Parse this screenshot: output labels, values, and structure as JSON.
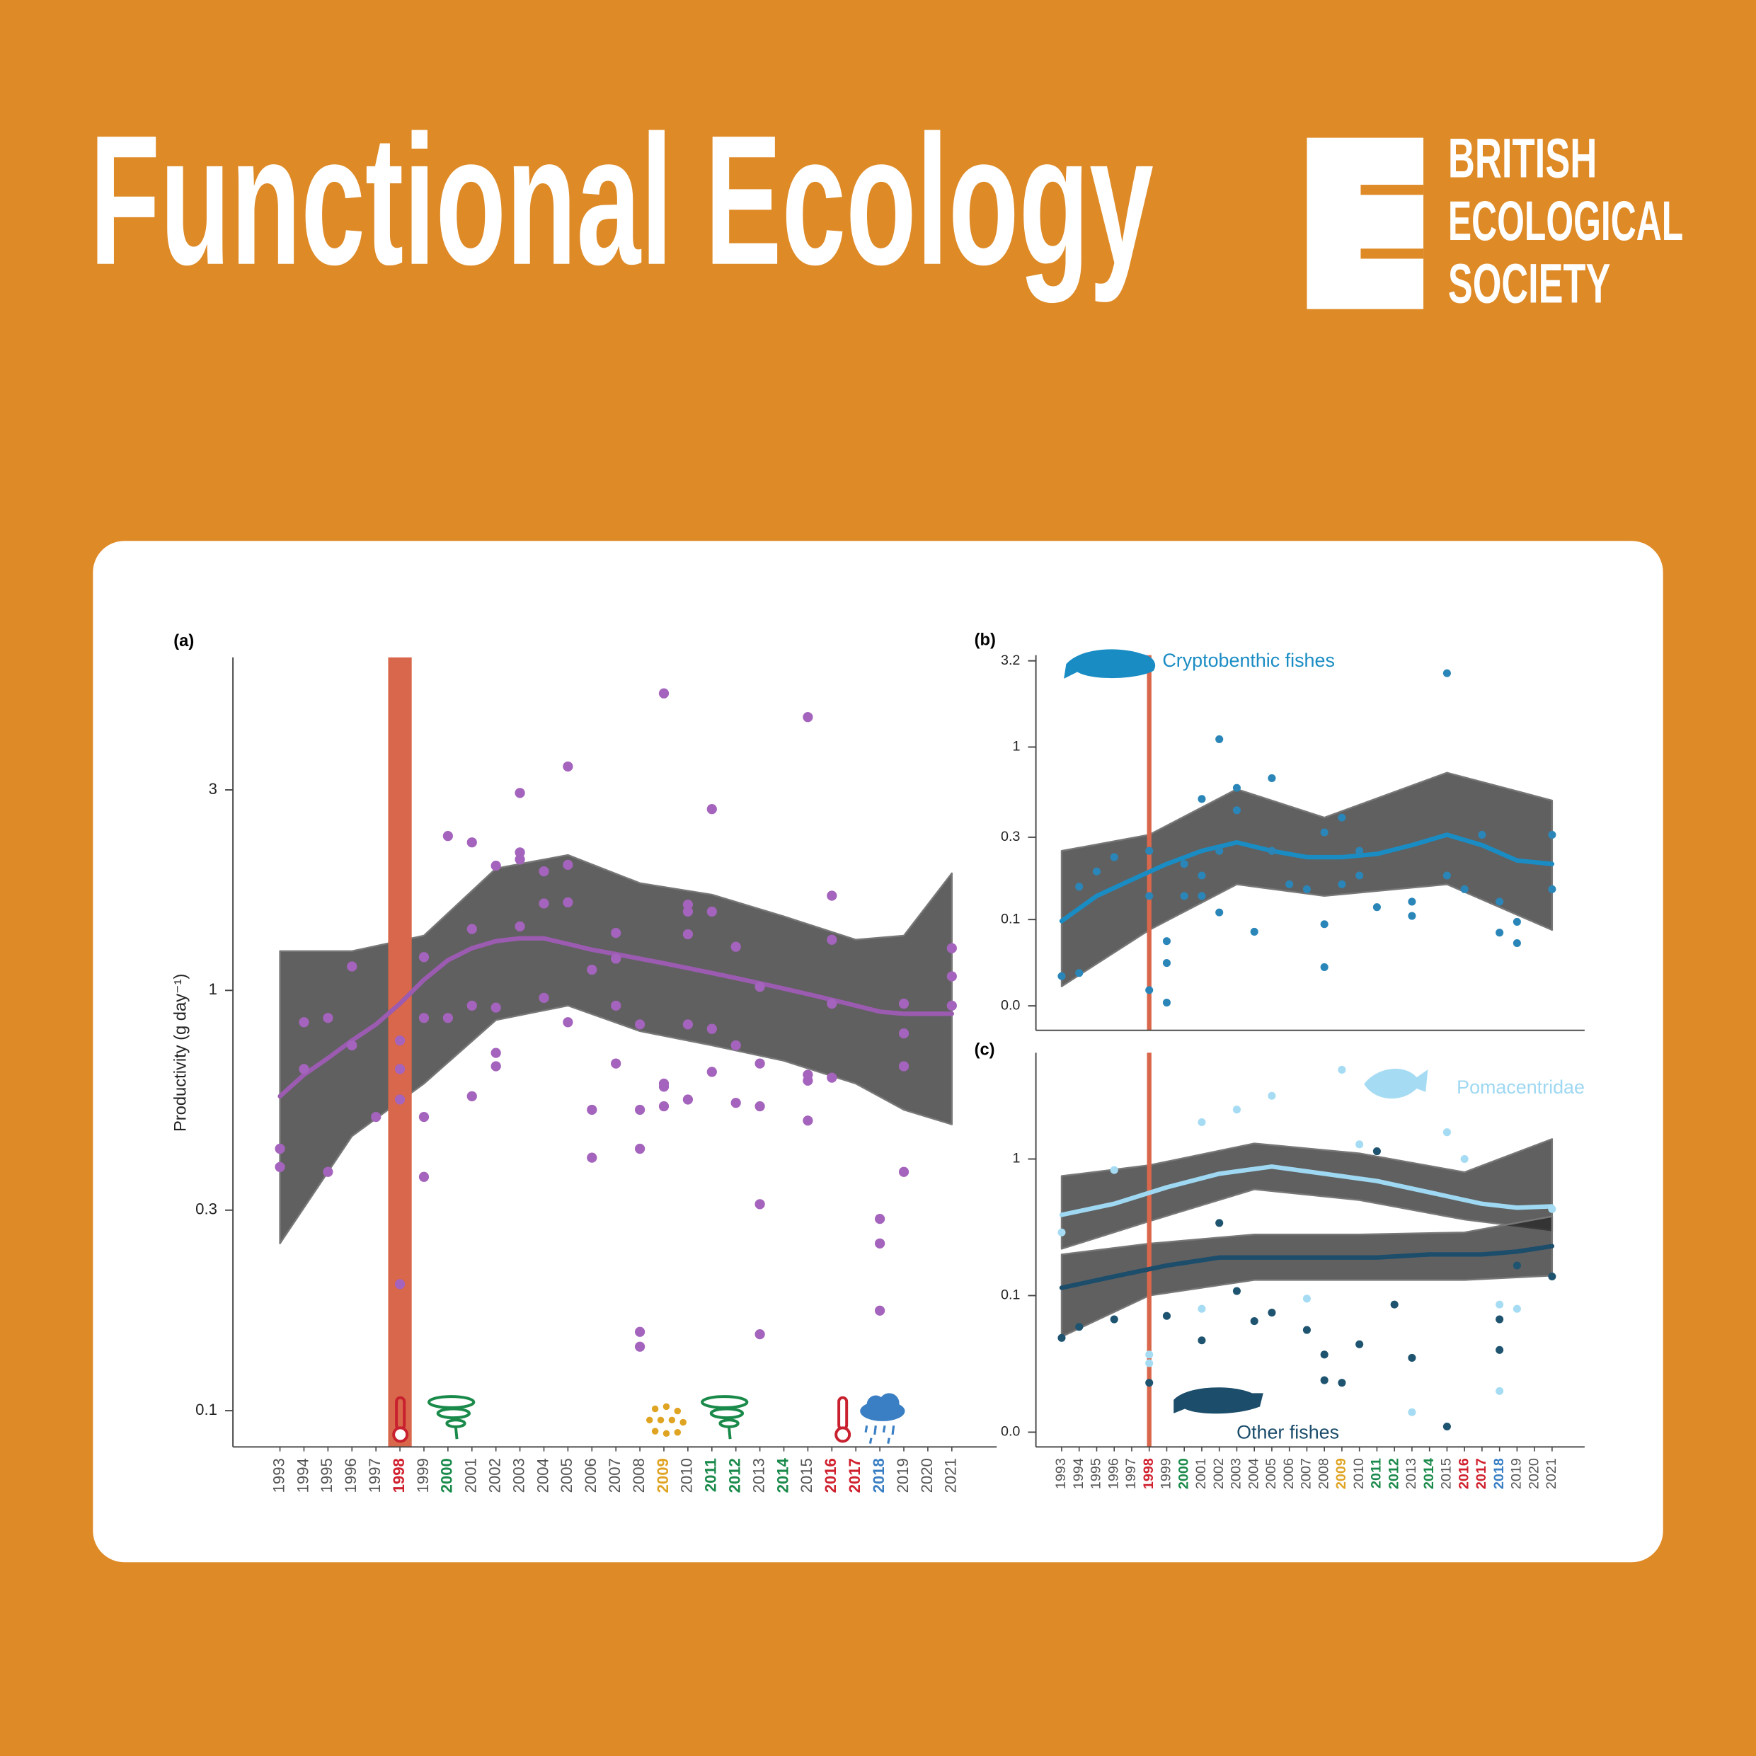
{
  "header": {
    "title": "Functional Ecology",
    "society": [
      "BRITISH",
      "ECOLOGICAL",
      "SOCIETY"
    ]
  },
  "chart_data": [
    {
      "type": "scatter",
      "panel_label": "(a)",
      "y_label": "Productivity (g day⁻¹)",
      "log_y": true,
      "xlim": [
        1991.04,
        2022.87
      ],
      "ylim": [
        0.082,
        6.2
      ],
      "yticks": [
        0.1,
        0.3,
        1.0,
        3.0
      ],
      "xticks": [
        1993,
        1994,
        1995,
        1996,
        1997,
        1998,
        1999,
        2000,
        2001,
        2002,
        2003,
        2004,
        2005,
        2006,
        2007,
        2008,
        2009,
        2010,
        2011,
        2012,
        2013,
        2014,
        2015,
        2016,
        2017,
        2018,
        2019,
        2020,
        2021
      ],
      "xtick_colors": [
        null,
        null,
        null,
        null,
        null,
        "#d0202e",
        null,
        "#1a8a4a",
        null,
        null,
        null,
        null,
        null,
        null,
        null,
        null,
        "#e0a423",
        null,
        "#1a8a4a",
        "#1a8a4a",
        null,
        "#1a8a4a",
        null,
        "#d0202e",
        "#d0202e",
        "#3a7fc4",
        null,
        null,
        null
      ],
      "highlight": {
        "x": 1998,
        "color": "#d9674b"
      },
      "series": [
        {
          "color": "#9b5bb0",
          "point_color": "#a463bc",
          "x": [
            1993,
            1993,
            1994,
            1994,
            1995,
            1995,
            1996,
            1996,
            1997,
            1998,
            1998,
            1998,
            1998,
            1999,
            1999,
            1999,
            1999,
            2000,
            2000,
            2001,
            2001,
            2001,
            2001,
            2002,
            2002,
            2002,
            2002,
            2003,
            2003,
            2003,
            2003,
            2004,
            2004,
            2004,
            2005,
            2005,
            2005,
            2005,
            2006,
            2006,
            2006,
            2007,
            2007,
            2007,
            2007,
            2008,
            2008,
            2008,
            2008,
            2008,
            2009,
            2009,
            2009,
            2009,
            2010,
            2010,
            2010,
            2010,
            2010,
            2011,
            2011,
            2011,
            2011,
            2012,
            2012,
            2012,
            2013,
            2013,
            2013,
            2013,
            2013,
            2015,
            2015,
            2015,
            2015,
            2016,
            2016,
            2016,
            2016,
            2018,
            2018,
            2018,
            2019,
            2019,
            2019,
            2019,
            2021,
            2021,
            2021
          ],
          "values": [
            0.42,
            0.38,
            0.84,
            0.65,
            0.86,
            0.37,
            1.14,
            0.74,
            0.5,
            0.76,
            0.65,
            0.55,
            0.2,
            1.2,
            0.86,
            0.5,
            0.36,
            2.33,
            0.86,
            2.25,
            1.4,
            0.92,
            0.56,
            1.98,
            0.91,
            0.71,
            0.66,
            2.95,
            2.13,
            2.05,
            1.42,
            1.92,
            1.61,
            0.96,
            3.41,
            1.99,
            1.62,
            0.84,
            1.12,
            0.52,
            0.4,
            1.37,
            1.19,
            0.92,
            0.67,
            0.83,
            0.52,
            0.42,
            0.154,
            0.142,
            5.09,
            0.6,
            0.59,
            0.53,
            1.6,
            1.54,
            1.36,
            0.83,
            0.55,
            2.7,
            1.54,
            0.81,
            0.64,
            1.27,
            0.74,
            0.54,
            1.02,
            0.67,
            0.53,
            0.31,
            0.152,
            4.47,
            0.63,
            0.61,
            0.49,
            1.68,
            1.32,
            0.93,
            0.62,
            0.286,
            0.25,
            0.173,
            0.93,
            0.79,
            0.66,
            0.37,
            1.26,
            1.08,
            0.92
          ],
          "trend_x": [
            1993,
            1994,
            1995,
            1996,
            1997,
            1998,
            1999,
            2000,
            2001,
            2002,
            2003,
            2004,
            2005,
            2006,
            2007,
            2008,
            2009,
            2010,
            2011,
            2012,
            2013,
            2014,
            2015,
            2016,
            2017,
            2018,
            2019,
            2020,
            2021
          ],
          "trend_values": [
            0.56,
            0.63,
            0.69,
            0.76,
            0.83,
            0.93,
            1.06,
            1.18,
            1.26,
            1.31,
            1.33,
            1.33,
            1.29,
            1.25,
            1.22,
            1.19,
            1.16,
            1.13,
            1.1,
            1.07,
            1.04,
            1.01,
            0.98,
            0.95,
            0.92,
            0.89,
            0.88,
            0.88,
            0.88
          ],
          "band_x": [
            1993,
            1996,
            1999,
            2002,
            2005,
            2008,
            2011,
            2014,
            2017,
            2019,
            2021
          ],
          "band_lower": [
            0.25,
            0.45,
            0.6,
            0.85,
            0.92,
            0.8,
            0.74,
            0.68,
            0.6,
            0.52,
            0.48
          ],
          "band_upper": [
            1.24,
            1.24,
            1.35,
            1.95,
            2.1,
            1.8,
            1.69,
            1.5,
            1.32,
            1.35,
            1.9
          ]
        }
      ]
    },
    {
      "type": "scatter",
      "panel_label": "(b)",
      "log_y": true,
      "xlim": [
        1991.53,
        2022.86
      ],
      "ylim": [
        0.0228,
        3.41
      ],
      "yticks": [
        {
          "value": 0.0316,
          "label": "0.0"
        },
        0.1,
        0.3,
        1.0,
        {
          "value": 3.16,
          "label": "3.2"
        }
      ],
      "highlight": {
        "x": 1998,
        "color": "#d9674b"
      },
      "series": [
        {
          "name": "Cryptobenthic fishes",
          "color": "#1a8cc4",
          "point_color": "#2a86b8",
          "x": [
            1993,
            1994,
            1994,
            1995,
            1996,
            1998,
            1998,
            1998,
            1999,
            1999,
            1999,
            2000,
            2000,
            2001,
            2001,
            2001,
            2002,
            2002,
            2002,
            2003,
            2003,
            2004,
            2005,
            2005,
            2006,
            2007,
            2008,
            2008,
            2008,
            2009,
            2009,
            2010,
            2010,
            2011,
            2013,
            2013,
            2015,
            2015,
            2016,
            2017,
            2018,
            2018,
            2019,
            2019,
            2021,
            2021
          ],
          "values": [
            0.047,
            0.049,
            0.155,
            0.19,
            0.23,
            0.039,
            0.137,
            0.25,
            0.033,
            0.056,
            0.075,
            0.21,
            0.137,
            0.5,
            0.137,
            0.18,
            1.11,
            0.11,
            0.25,
            0.58,
            0.43,
            0.085,
            0.66,
            0.25,
            0.16,
            0.15,
            0.053,
            0.094,
            0.32,
            0.39,
            0.16,
            0.25,
            0.18,
            0.118,
            0.127,
            0.105,
            2.68,
            0.18,
            0.15,
            0.31,
            0.084,
            0.127,
            0.073,
            0.097,
            0.31,
            0.15
          ],
          "trend_x": [
            1993,
            1995,
            1997,
            1999,
            2001,
            2003,
            2005,
            2007,
            2009,
            2011,
            2013,
            2015,
            2017,
            2019,
            2021
          ],
          "trend_values": [
            0.098,
            0.137,
            0.17,
            0.21,
            0.25,
            0.28,
            0.25,
            0.23,
            0.23,
            0.24,
            0.27,
            0.31,
            0.27,
            0.22,
            0.21
          ],
          "band_x": [
            1993,
            1998,
            2003,
            2008,
            2015,
            2021
          ],
          "band_lower": [
            0.041,
            0.087,
            0.16,
            0.137,
            0.16,
            0.087
          ],
          "band_upper": [
            0.25,
            0.31,
            0.57,
            0.39,
            0.71,
            0.49
          ]
        }
      ]
    },
    {
      "type": "scatter",
      "panel_label": "(c)",
      "log_y": true,
      "xlim": [
        1991.53,
        2022.86
      ],
      "ylim": [
        0.0078,
        6.0
      ],
      "yticks": [
        {
          "value": 0.01,
          "label": "0.0"
        },
        0.1,
        1.0
      ],
      "xticks": [
        1993,
        1994,
        1995,
        1996,
        1997,
        1998,
        1999,
        2000,
        2001,
        2002,
        2003,
        2004,
        2005,
        2006,
        2007,
        2008,
        2009,
        2010,
        2011,
        2012,
        2013,
        2014,
        2015,
        2016,
        2017,
        2018,
        2019,
        2020,
        2021
      ],
      "xtick_colors": [
        null,
        null,
        null,
        null,
        null,
        "#d0202e",
        null,
        "#1a8a4a",
        null,
        null,
        null,
        null,
        null,
        null,
        null,
        null,
        "#e0a423",
        null,
        "#1a8a4a",
        "#1a8a4a",
        null,
        "#1a8a4a",
        null,
        "#d0202e",
        "#d0202e",
        "#3a7fc4",
        null,
        null,
        null
      ],
      "highlight": {
        "x": 1998,
        "color": "#d9674b"
      },
      "series": [
        {
          "name": "Pomacentridae",
          "color": "#9fd8f2",
          "point_color": "#a6dcf3",
          "x": [
            1993,
            1996,
            1998,
            1998,
            2001,
            2001,
            2003,
            2005,
            2007,
            2009,
            2010,
            2013,
            2015,
            2016,
            2018,
            2018,
            2019,
            2021
          ],
          "values": [
            0.29,
            0.83,
            0.037,
            0.032,
            1.86,
            0.08,
            2.3,
            2.9,
            0.095,
            4.5,
            1.28,
            0.014,
            1.57,
            1.0,
            0.02,
            0.086,
            0.08,
            0.43
          ],
          "trend_x": [
            1993,
            1996,
            1999,
            2002,
            2005,
            2008,
            2011,
            2014,
            2017,
            2019,
            2021
          ],
          "trend_values": [
            0.39,
            0.47,
            0.62,
            0.78,
            0.88,
            0.78,
            0.69,
            0.57,
            0.47,
            0.44,
            0.45
          ],
          "band_x": [
            1993,
            1998,
            2004,
            2010,
            2016,
            2021
          ],
          "band_lower": [
            0.22,
            0.35,
            0.6,
            0.5,
            0.36,
            0.3
          ],
          "band_upper": [
            0.75,
            0.9,
            1.3,
            1.1,
            0.8,
            1.4
          ]
        },
        {
          "name": "Other fishes",
          "color": "#1c4d6b",
          "point_color": "#1f5470",
          "x": [
            1993,
            1994,
            1996,
            1998,
            1999,
            2001,
            2002,
            2003,
            2004,
            2005,
            2007,
            2008,
            2008,
            2009,
            2010,
            2011,
            2012,
            2013,
            2015,
            2018,
            2018,
            2019,
            2021
          ],
          "values": [
            0.049,
            0.059,
            0.067,
            0.023,
            0.071,
            0.047,
            0.34,
            0.108,
            0.065,
            0.075,
            0.056,
            0.037,
            0.024,
            0.023,
            0.044,
            1.14,
            0.086,
            0.035,
            0.011,
            0.04,
            0.067,
            0.166,
            0.138
          ],
          "trend_x": [
            1993,
            1996,
            1999,
            2002,
            2005,
            2008,
            2011,
            2014,
            2017,
            2019,
            2021
          ],
          "trend_values": [
            0.114,
            0.138,
            0.166,
            0.19,
            0.19,
            0.19,
            0.19,
            0.2,
            0.2,
            0.21,
            0.23
          ],
          "band_x": [
            1993,
            1998,
            2004,
            2010,
            2016,
            2021
          ],
          "band_lower": [
            0.05,
            0.1,
            0.13,
            0.13,
            0.13,
            0.14
          ],
          "band_upper": [
            0.2,
            0.24,
            0.28,
            0.28,
            0.29,
            0.38
          ]
        }
      ]
    }
  ]
}
